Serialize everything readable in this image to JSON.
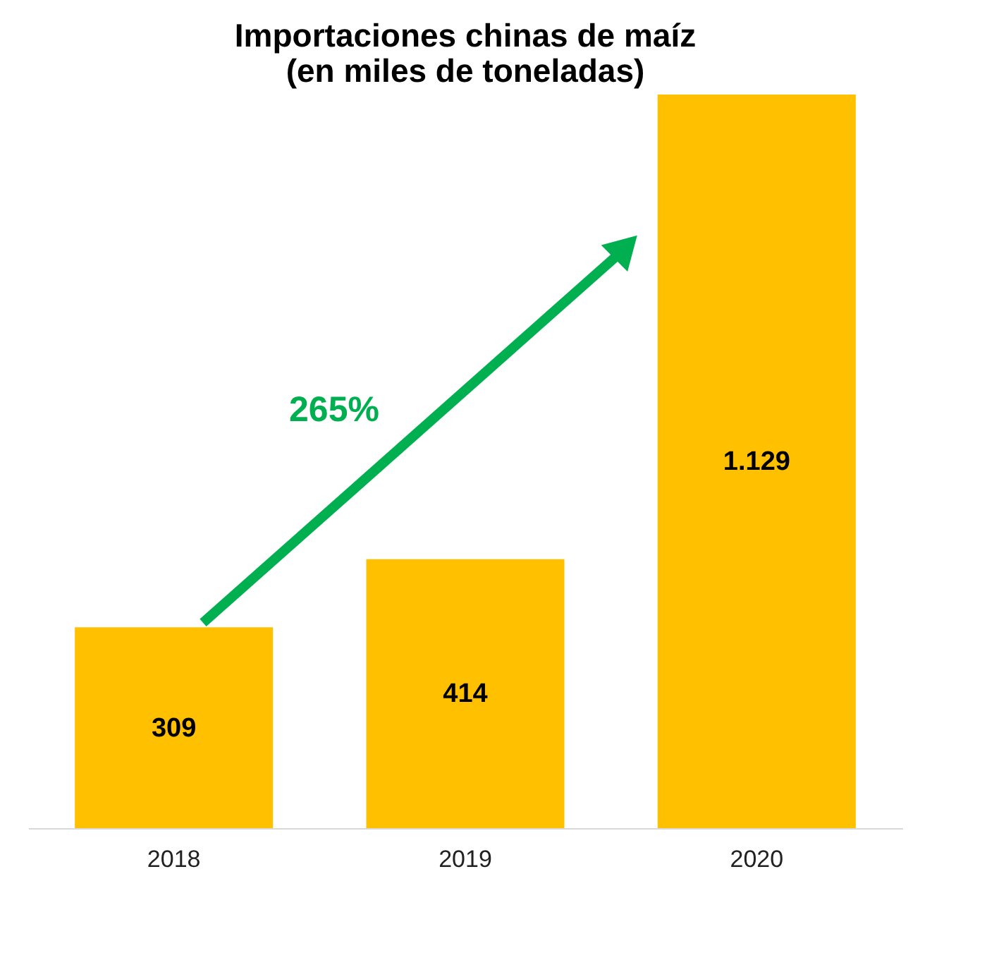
{
  "chart_data": {
    "type": "bar",
    "title": [
      "Importaciones chinas de maíz",
      "(en miles de toneladas)"
    ],
    "categories": [
      "2018",
      "2019",
      "2020"
    ],
    "values": [
      309,
      414,
      1129
    ],
    "value_labels": [
      "309",
      "414",
      "1.129"
    ],
    "color": "#ffc000",
    "annotations": [
      "265%"
    ],
    "grid": false
  }
}
